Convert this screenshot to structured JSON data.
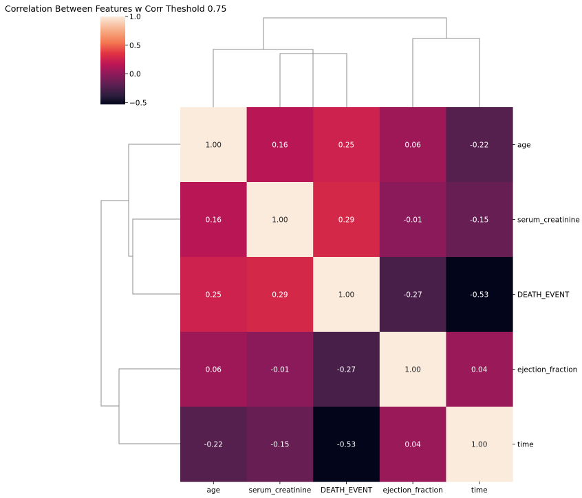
{
  "chart_data": {
    "type": "heatmap",
    "title": "Correlation Between Features w Corr Theshold 0.75",
    "labels": [
      "age",
      "serum_creatinine",
      "DEATH_EVENT",
      "ejection_fraction",
      "time"
    ],
    "matrix": [
      [
        1.0,
        0.16,
        0.25,
        0.06,
        -0.22
      ],
      [
        0.16,
        1.0,
        0.29,
        -0.01,
        -0.15
      ],
      [
        0.25,
        0.29,
        1.0,
        -0.27,
        -0.53
      ],
      [
        0.06,
        -0.01,
        -0.27,
        1.0,
        0.04
      ],
      [
        -0.22,
        -0.15,
        -0.53,
        0.04,
        1.0
      ]
    ],
    "cell_labels": [
      [
        "1.00",
        "0.16",
        "0.25",
        "0.06",
        "-0.22"
      ],
      [
        "0.16",
        "1.00",
        "0.29",
        "-0.01",
        "-0.15"
      ],
      [
        "0.25",
        "0.29",
        "1.00",
        "-0.27",
        "-0.53"
      ],
      [
        "0.06",
        "-0.01",
        "-0.27",
        "1.00",
        "0.04"
      ],
      [
        "-0.22",
        "-0.15",
        "-0.53",
        "0.04",
        "1.00"
      ]
    ],
    "colorbar": {
      "range": [
        -0.53,
        1.0
      ],
      "ticks": [
        1.0,
        0.5,
        0.0,
        -0.5
      ],
      "tick_labels": [
        "1.0",
        "0.5",
        "0.0",
        "−0.5"
      ],
      "colormap": "rocket"
    },
    "dendrogram": "both rows and columns clustered",
    "colors": {
      "dendrogram_line": "#8c8c8c",
      "text_dark": "#262626",
      "text_light": "#ffffff"
    }
  }
}
